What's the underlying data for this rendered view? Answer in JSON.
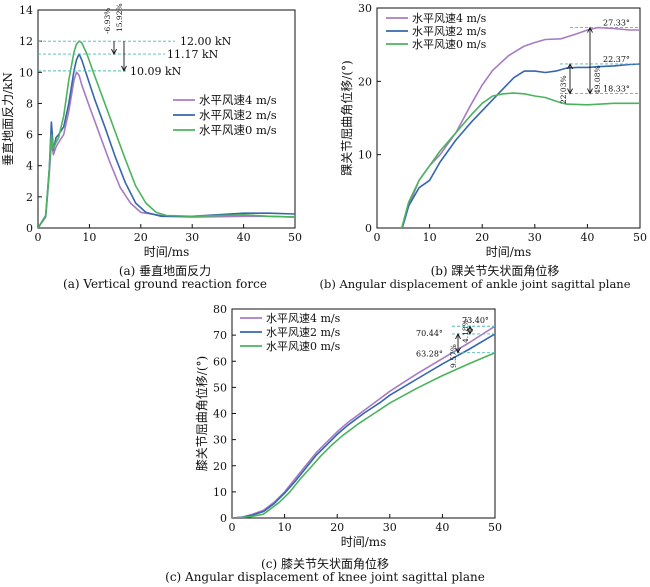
{
  "colors": {
    "series_4": "#a77bc4",
    "series_2": "#3667ad",
    "series_0": "#4bb35d",
    "dashed": "#4fb8b8",
    "axis": "#111111"
  },
  "captions": {
    "a_cn": "(a) 垂直地面反力",
    "a_en": "(a) Vertical ground reaction force",
    "b_cn": "(b) 踝关节矢状面角位移",
    "b_en": "(b)  Angular displacement of ankle joint sagittal plane",
    "c_cn": "(c) 膝关节矢状面角位移",
    "c_en": "(c) Angular displacement of  knee joint sagittal plane"
  },
  "chart_data": [
    {
      "type": "line",
      "id": "a",
      "xlabel": "时间/ms",
      "ylabel": "垂直地面反力/kN",
      "xlim": [
        0,
        50
      ],
      "ylim": [
        0,
        14
      ],
      "xticks": [
        0,
        10,
        20,
        30,
        40,
        50
      ],
      "yticks": [
        0,
        2,
        4,
        6,
        8,
        10,
        12,
        14
      ],
      "legend_position": "center-right",
      "series": [
        {
          "name": "水平风速4 m/s",
          "color": "#a77bc4",
          "x": [
            0,
            1.5,
            2.2,
            2.6,
            3,
            3.5,
            4,
            5,
            6,
            7,
            7.5,
            8,
            8.5,
            10,
            12,
            14,
            16,
            18,
            20,
            22,
            25,
            30,
            40,
            45,
            50
          ],
          "y": [
            0,
            0.7,
            3.5,
            5.5,
            4.7,
            5.2,
            5.5,
            6,
            7.5,
            9.5,
            10,
            9.8,
            9.2,
            7.8,
            6,
            4.2,
            2.6,
            1.6,
            1.0,
            0.9,
            0.75,
            0.7,
            0.75,
            0.75,
            0.7
          ]
        },
        {
          "name": "水平风速2 m/s",
          "color": "#3667ad",
          "x": [
            0,
            1.5,
            2.2,
            2.6,
            3,
            3.5,
            4,
            5,
            6,
            7,
            7.5,
            8,
            8.5,
            9.5,
            11,
            13,
            15,
            17,
            19,
            21,
            24,
            30,
            40,
            45,
            50
          ],
          "y": [
            0,
            0.8,
            3.8,
            6.8,
            5,
            5.8,
            6,
            6.5,
            8,
            10.1,
            10.8,
            11.17,
            10.8,
            9.8,
            8.3,
            6.5,
            4.6,
            2.9,
            1.6,
            1.0,
            0.75,
            0.75,
            0.95,
            0.95,
            0.9
          ]
        },
        {
          "name": "水平风速0 m/s",
          "color": "#4bb35d",
          "x": [
            0,
            1.5,
            2.2,
            2.6,
            3,
            3.5,
            4,
            5,
            6,
            7,
            7.5,
            8,
            8.5,
            9.5,
            11,
            13,
            15,
            17,
            19,
            21,
            23,
            25,
            30,
            40,
            45,
            50
          ],
          "y": [
            0,
            0.8,
            3.8,
            6,
            5.1,
            5.5,
            5.8,
            7.2,
            9.5,
            11.3,
            11.8,
            12.0,
            11.9,
            11.2,
            9.8,
            8.0,
            6.2,
            4.4,
            2.7,
            1.6,
            1.0,
            0.8,
            0.75,
            0.85,
            0.75,
            0.7
          ]
        }
      ],
      "annotations": [
        "-6.93%",
        "15.92%",
        "12.00 kN",
        "11.17 kN",
        "10.09 kN"
      ]
    },
    {
      "type": "line",
      "id": "b",
      "xlabel": "时间/ms",
      "ylabel": "踝关节屈曲角位移/(°)",
      "xlim": [
        0,
        50
      ],
      "ylim": [
        0,
        30
      ],
      "xticks": [
        0,
        10,
        20,
        30,
        40,
        50
      ],
      "yticks": [
        0,
        10,
        20,
        30
      ],
      "legend_position": "top-left",
      "series": [
        {
          "name": "水平风速4 m/s",
          "color": "#a77bc4",
          "x": [
            4.5,
            5,
            6,
            8,
            10,
            12,
            15,
            18,
            20,
            22,
            25,
            28,
            30,
            32,
            35,
            38,
            40,
            42,
            45,
            48,
            50
          ],
          "y": [
            -0.5,
            0.5,
            3,
            6.5,
            8.5,
            10,
            13,
            17,
            19.5,
            21.5,
            23.5,
            24.8,
            25.3,
            25.7,
            25.8,
            26.5,
            27,
            27.33,
            27.2,
            27,
            27
          ]
        },
        {
          "name": "水平风速2 m/s",
          "color": "#3667ad",
          "x": [
            4.5,
            5,
            6,
            8,
            10,
            12,
            15,
            18,
            20,
            22,
            24,
            26,
            28,
            30,
            32,
            34,
            36,
            38,
            40,
            42,
            45,
            48,
            50
          ],
          "y": [
            -0.5,
            0.5,
            3,
            5.5,
            6.5,
            9,
            12,
            14.5,
            16,
            17.5,
            19,
            20.5,
            21.4,
            21.4,
            21.2,
            21.4,
            21.8,
            21.9,
            21.9,
            22.0,
            22.1,
            22.3,
            22.37
          ]
        },
        {
          "name": "水平风速0 m/s",
          "color": "#4bb35d",
          "x": [
            4.5,
            5,
            6,
            8,
            10,
            12,
            15,
            18,
            20,
            22,
            24,
            26,
            28,
            30,
            32,
            34,
            36,
            40,
            45,
            50
          ],
          "y": [
            -0.5,
            0.8,
            3.5,
            6.5,
            8.5,
            10.5,
            13,
            15.5,
            17,
            18,
            18.3,
            18.4,
            18.3,
            18,
            17.8,
            17.3,
            16.9,
            16.8,
            17,
            17
          ]
        }
      ],
      "annotations": [
        "27.33°",
        "22.37°",
        "18.33°",
        "49.08%",
        "22.03%"
      ]
    },
    {
      "type": "line",
      "id": "c",
      "xlabel": "时间/ms",
      "ylabel": "膝关节屈曲角位移/(°)",
      "xlim": [
        0,
        50
      ],
      "ylim": [
        0,
        80
      ],
      "xticks": [
        0,
        10,
        20,
        30,
        40,
        50
      ],
      "yticks": [
        0,
        10,
        20,
        30,
        40,
        50,
        60,
        70,
        80
      ],
      "legend_position": "top-left",
      "series": [
        {
          "name": "水平风速4 m/s",
          "color": "#a77bc4",
          "x": [
            0,
            2,
            4,
            6,
            8,
            10,
            12,
            14,
            16,
            18,
            20,
            22,
            25,
            28,
            30,
            35,
            40,
            45,
            50
          ],
          "y": [
            0,
            0.3,
            1.5,
            3,
            6,
            10,
            15,
            20,
            25,
            29,
            33,
            36.5,
            41,
            45.5,
            48.5,
            55,
            61,
            67,
            73.4
          ]
        },
        {
          "name": "水平风速2 m/s",
          "color": "#3667ad",
          "x": [
            0,
            2,
            4,
            6,
            8,
            10,
            12,
            14,
            16,
            18,
            20,
            22,
            25,
            28,
            30,
            35,
            40,
            45,
            50
          ],
          "y": [
            0,
            0.3,
            1.2,
            2.5,
            5.5,
            9.5,
            14,
            19,
            24,
            28,
            32,
            35.5,
            40,
            44,
            47,
            53,
            59,
            64.5,
            70.44
          ]
        },
        {
          "name": "水平风速0 m/s",
          "color": "#4bb35d",
          "x": [
            0,
            2,
            4,
            6,
            7,
            9,
            11,
            13,
            15,
            17,
            19,
            21,
            24,
            27,
            30,
            35,
            40,
            45,
            50
          ],
          "y": [
            0,
            0.2,
            0.7,
            1.5,
            3,
            6,
            10,
            15,
            19.5,
            24,
            28,
            31.5,
            36,
            40,
            44,
            49.5,
            54.5,
            59,
            63.28
          ]
        }
      ],
      "annotations": [
        "73.40°",
        "70.44°",
        "63.28°",
        "9.57%",
        "4.18%"
      ]
    }
  ]
}
